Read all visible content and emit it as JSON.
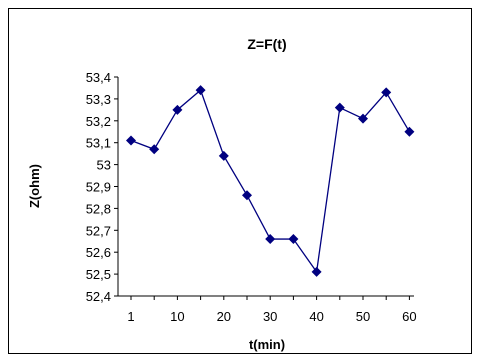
{
  "chart_data": {
    "type": "line",
    "title": "Z=F(t)",
    "xlabel": "t(min)",
    "ylabel": "Z(ohm)",
    "x": [
      1,
      5,
      10,
      15,
      20,
      25,
      30,
      35,
      40,
      45,
      50,
      55,
      60
    ],
    "x_tick_labels": [
      "1",
      "10",
      "20",
      "30",
      "40",
      "50",
      "60"
    ],
    "y_tick_labels": [
      "52,4",
      "52,5",
      "52,6",
      "52,7",
      "52,8",
      "52,9",
      "53",
      "53,1",
      "53,2",
      "53,3",
      "53,4"
    ],
    "ylim": [
      52.4,
      53.4
    ],
    "y_step": 0.1,
    "grid": false,
    "legend": "none",
    "series": [
      {
        "values": [
          53.11,
          53.07,
          53.25,
          53.34,
          53.04,
          52.86,
          52.66,
          52.66,
          52.51,
          53.26,
          53.21,
          53.33,
          53.15
        ],
        "color": "#000080",
        "marker": "diamond"
      }
    ]
  }
}
